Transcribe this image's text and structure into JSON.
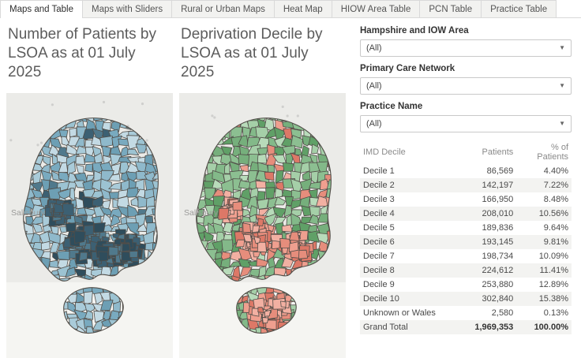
{
  "tabs": [
    {
      "label": "Maps and Table",
      "active": true
    },
    {
      "label": "Maps with Sliders",
      "active": false
    },
    {
      "label": "Rural or Urban Maps",
      "active": false
    },
    {
      "label": "Heat Map",
      "active": false
    },
    {
      "label": "HIOW Area Table",
      "active": false
    },
    {
      "label": "PCN Table",
      "active": false
    },
    {
      "label": "Practice Table",
      "active": false
    }
  ],
  "maps": {
    "left": {
      "title": "Number of Patients by LSOA as at 01 July 2025",
      "map_label": "Salisbury"
    },
    "right": {
      "title": "Deprivation Decile by LSOA as at 01 July 2025",
      "map_label": "Salisbury"
    }
  },
  "filters": [
    {
      "label": "Hampshire and IOW Area",
      "value": "(All)"
    },
    {
      "label": "Primary Care Network",
      "value": "(All)"
    },
    {
      "label": "Practice Name",
      "value": "(All)"
    }
  ],
  "table": {
    "columns": [
      "IMD Decile",
      "Patients",
      "% of Patients"
    ],
    "rows": [
      [
        "Decile 1",
        "86,569",
        "4.40%"
      ],
      [
        "Decile 2",
        "142,197",
        "7.22%"
      ],
      [
        "Decile 3",
        "166,950",
        "8.48%"
      ],
      [
        "Decile 4",
        "208,010",
        "10.56%"
      ],
      [
        "Decile 5",
        "189,836",
        "9.64%"
      ],
      [
        "Decile 6",
        "193,145",
        "9.81%"
      ],
      [
        "Decile 7",
        "198,734",
        "10.09%"
      ],
      [
        "Decile 8",
        "224,612",
        "11.41%"
      ],
      [
        "Decile 9",
        "253,880",
        "12.89%"
      ],
      [
        "Decile 10",
        "302,840",
        "15.38%"
      ],
      [
        "Unknown or Wales",
        "2,580",
        "0.13%"
      ],
      [
        "Grand Total",
        "1,969,353",
        "100.00%"
      ]
    ]
  },
  "colors": {
    "map_land": "#ebebe8",
    "map_sea": "#f5f5f2",
    "map_stroke": "#514d48",
    "map_label": "#9b9b99",
    "blue_palette": [
      "#a9cbd9",
      "#8fb9cb",
      "#79aabf",
      "#c3dae4",
      "#9cc3d2",
      "#6d9fb4"
    ],
    "blue_dark_palette": [
      "#2f4d5c",
      "#3c6073",
      "#50798c"
    ],
    "green_palette": [
      "#8cbf91",
      "#76af7c",
      "#a5cfa8",
      "#60a067",
      "#b8dbba",
      "#83b989"
    ],
    "salmon_palette": [
      "#e68d7c",
      "#ef9f8f",
      "#dd7867",
      "#f2b0a2"
    ]
  }
}
